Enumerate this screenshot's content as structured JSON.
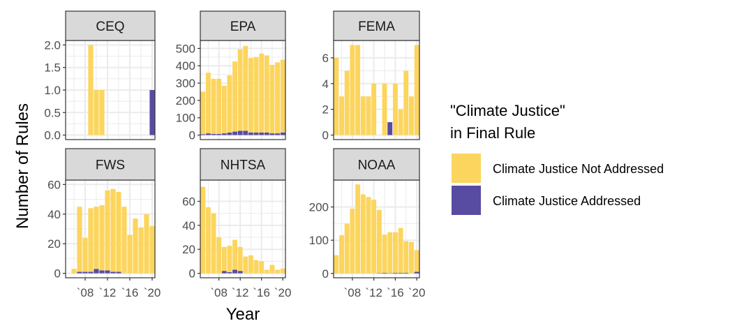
{
  "chart_data": {
    "type": "bar",
    "stacked": true,
    "layout": "facet-grid-2x3",
    "xlabel": "Year",
    "ylabel": "Number of Rules",
    "x": [
      2005,
      2006,
      2007,
      2008,
      2009,
      2010,
      2011,
      2012,
      2013,
      2014,
      2015,
      2016,
      2017,
      2018,
      2019,
      2020
    ],
    "x_ticks": [
      2008,
      2012,
      2016,
      2020
    ],
    "x_tick_labels": [
      "`08",
      "`12",
      "`16",
      "`20"
    ],
    "xlim": [
      2004.5,
      2020.5
    ],
    "legend": {
      "title_lines": [
        "\"Climate Justice\"",
        "in Final Rule"
      ],
      "placement": "right",
      "entries": [
        {
          "name": "Climate Justice Not Addressed",
          "color": "#FCD55E"
        },
        {
          "name": "Climate Justice Addressed",
          "color": "#574CA1"
        }
      ]
    },
    "colors": {
      "not_addressed": "#FCD55E",
      "addressed": "#574CA1",
      "strip_fill": "#D9D9D9",
      "grid": "#EBEBEB",
      "border": "#333333"
    },
    "panels": [
      {
        "name": "CEQ",
        "ylim": [
          -0.1,
          2.1
        ],
        "y_ticks": [
          0,
          0.5,
          1,
          1.5,
          2
        ],
        "y_tick_labels": [
          "0.0",
          "0.5",
          "1.0",
          "1.5",
          "2.0"
        ],
        "not_addressed": [
          0,
          0,
          0,
          0,
          2,
          1,
          1,
          0,
          0,
          0,
          0,
          0,
          0,
          0,
          0,
          0
        ],
        "addressed": [
          0,
          0,
          0,
          0,
          0,
          0,
          0,
          0,
          0,
          0,
          0,
          0,
          0,
          0,
          0,
          1
        ]
      },
      {
        "name": "EPA",
        "ylim": [
          -26,
          546
        ],
        "y_ticks": [
          0,
          100,
          200,
          300,
          400,
          500
        ],
        "y_tick_labels": [
          "0",
          "100",
          "200",
          "300",
          "400",
          "500"
        ],
        "not_addressed": [
          245,
          350,
          318,
          318,
          275,
          330,
          405,
          470,
          490,
          430,
          435,
          455,
          445,
          395,
          410,
          420
        ],
        "addressed": [
          5,
          10,
          7,
          7,
          10,
          15,
          20,
          25,
          25,
          15,
          15,
          15,
          15,
          10,
          10,
          15
        ]
      },
      {
        "name": "FEMA",
        "ylim": [
          -0.35,
          7.35
        ],
        "y_ticks": [
          0,
          2,
          4,
          6
        ],
        "y_tick_labels": [
          "0",
          "2",
          "4",
          "6"
        ],
        "not_addressed": [
          6,
          3,
          5,
          7,
          7,
          3,
          3,
          4,
          0,
          4,
          0,
          4,
          2,
          5,
          3,
          7
        ],
        "addressed": [
          0,
          0,
          0,
          0,
          0,
          0,
          0,
          0,
          0,
          0,
          1,
          0,
          0,
          0,
          0,
          0
        ]
      },
      {
        "name": "FWS",
        "ylim": [
          -3,
          63
        ],
        "y_ticks": [
          0,
          20,
          40,
          60
        ],
        "y_tick_labels": [
          "0",
          "20",
          "40",
          "60"
        ],
        "not_addressed": [
          0,
          3,
          44,
          23,
          43,
          42,
          44,
          54,
          56,
          54,
          45,
          26,
          37,
          31,
          40,
          32
        ],
        "addressed": [
          0,
          0,
          1,
          1,
          1,
          3,
          2,
          2,
          1,
          1,
          0,
          0,
          0,
          0,
          0,
          0
        ]
      },
      {
        "name": "NHTSA",
        "ylim": [
          -3.7,
          77.7
        ],
        "y_ticks": [
          0,
          20,
          40,
          60
        ],
        "y_tick_labels": [
          "0",
          "20",
          "40",
          "60"
        ],
        "not_addressed": [
          72,
          55,
          50,
          30,
          20,
          22,
          25,
          20,
          14,
          15,
          11,
          10,
          3,
          7,
          3,
          4
        ],
        "addressed": [
          0,
          0,
          0,
          0,
          2,
          1,
          3,
          2,
          0,
          0,
          0,
          0,
          0,
          0,
          0,
          0
        ]
      },
      {
        "name": "NOAA",
        "ylim": [
          -13,
          281
        ],
        "y_ticks": [
          0,
          100,
          200
        ],
        "y_tick_labels": [
          "0",
          "100",
          "200"
        ],
        "not_addressed": [
          55,
          115,
          150,
          195,
          268,
          238,
          230,
          222,
          190,
          115,
          123,
          122,
          135,
          95,
          95,
          65
        ],
        "addressed": [
          0,
          0,
          0,
          0,
          0,
          0,
          0,
          0,
          1,
          2,
          1,
          2,
          2,
          2,
          0,
          5
        ]
      }
    ]
  }
}
